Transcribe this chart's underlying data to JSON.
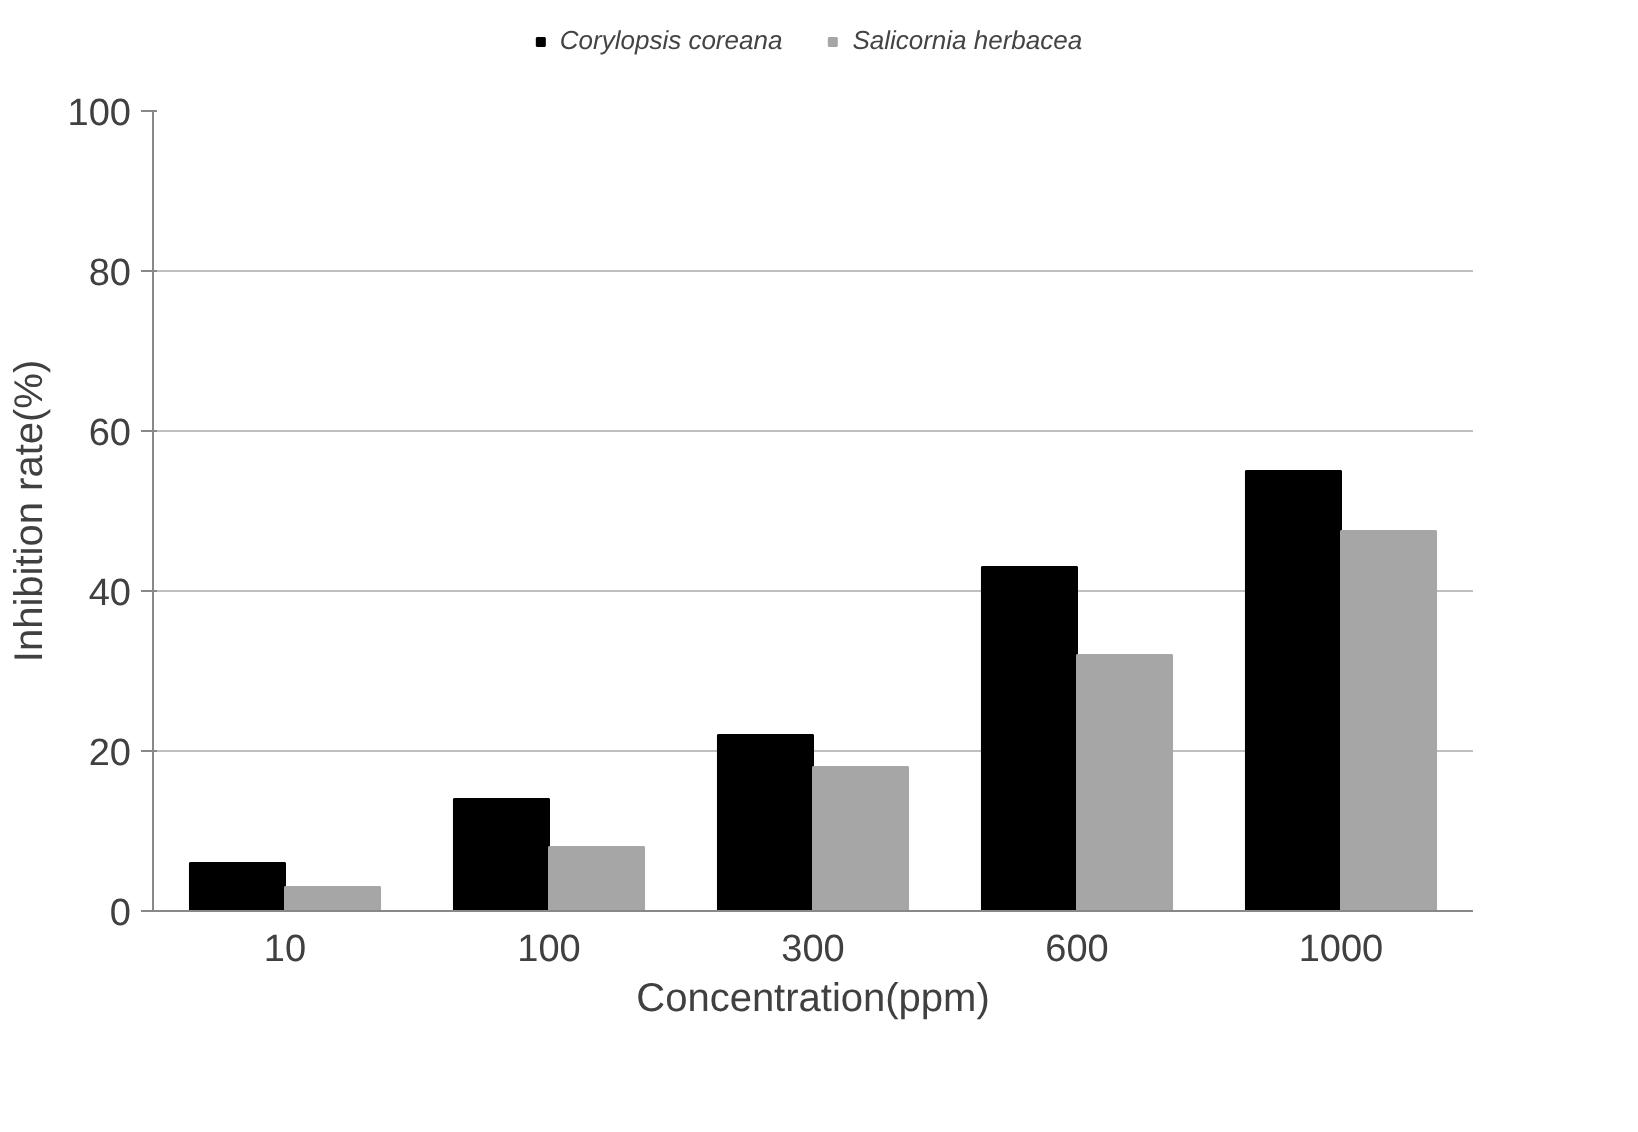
{
  "chart_data": {
    "type": "bar",
    "xlabel": "Concentration(ppm)",
    "ylabel": "Inhibition rate(%)",
    "categories": [
      "10",
      "100",
      "300",
      "600",
      "1000"
    ],
    "series": [
      {
        "name": "Corylopsis coreana",
        "color": "#000000",
        "values": [
          6,
          14,
          22,
          43,
          55
        ]
      },
      {
        "name": "Salicornia herbacea",
        "color": "#a6a6a6",
        "values": [
          3,
          8,
          18,
          32,
          47.5
        ]
      }
    ],
    "ylim": [
      0,
      100
    ],
    "yticks": [
      0,
      20,
      40,
      60,
      80,
      100
    ],
    "grid": "y",
    "legend": "top"
  }
}
